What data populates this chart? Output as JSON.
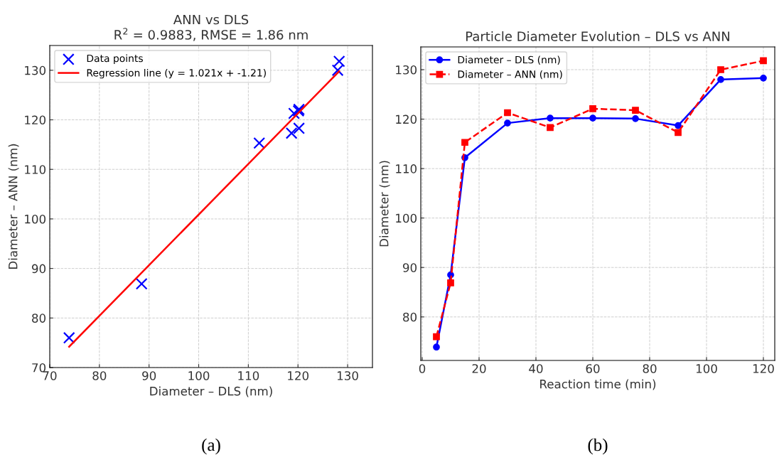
{
  "chart_data": [
    {
      "type": "scatter",
      "title": "ANN vs DLS",
      "subtitle": "R$^{2}$ = 0.9883, RMSE = 1.86 nm",
      "xlabel": "Diameter – DLS (nm)",
      "ylabel": "Diameter – ANN (nm)",
      "series": [
        {
          "name": "Data points",
          "type": "scatter",
          "color": "#0000ff",
          "marker": "cross",
          "x": [
            73.9,
            88.5,
            112.2,
            119.2,
            120.2,
            120.2,
            120.1,
            118.7,
            128.0,
            128.3
          ],
          "values": [
            76.0,
            86.9,
            115.3,
            121.3,
            118.3,
            122.1,
            121.8,
            117.3,
            130.0,
            131.8
          ]
        },
        {
          "name": "Regression line (y = 1.021x + -1.21)",
          "type": "line",
          "color": "#ff0000",
          "marker": "none",
          "line_style": "solid",
          "x": [
            73.9,
            128.3
          ],
          "values": [
            74.2,
            129.8
          ]
        }
      ],
      "xlim": [
        70,
        135
      ],
      "ylim": [
        70,
        135
      ],
      "xticks": [
        70,
        80,
        90,
        100,
        110,
        120,
        130
      ],
      "yticks": [
        70,
        80,
        90,
        100,
        110,
        120,
        130
      ],
      "grid": true,
      "legend": "top left",
      "annotations": [
        "(a)"
      ]
    },
    {
      "type": "line",
      "title": "Particle Diameter Evolution – DLS vs ANN",
      "xlabel": "Reaction time (min)",
      "ylabel": "Diameter (nm)",
      "x": [
        5,
        10,
        15,
        30,
        45,
        60,
        75,
        90,
        105,
        120
      ],
      "series": [
        {
          "name": "Diameter – DLS (nm)",
          "color": "#0000ff",
          "marker": "circle",
          "line_style": "solid",
          "values": [
            73.9,
            88.5,
            112.2,
            119.2,
            120.2,
            120.2,
            120.1,
            118.7,
            128.0,
            128.3
          ]
        },
        {
          "name": "Diameter – ANN (nm)",
          "color": "#ff0000",
          "marker": "square",
          "line_style": "dashed",
          "values": [
            76.0,
            86.9,
            115.3,
            121.3,
            118.3,
            122.1,
            121.8,
            117.3,
            130.0,
            131.8
          ]
        }
      ],
      "xlim": [
        -0.5,
        124
      ],
      "ylim": [
        71.2,
        134.6
      ],
      "xticks": [
        0,
        20,
        40,
        60,
        80,
        100,
        120
      ],
      "yticks": [
        80,
        90,
        100,
        110,
        120,
        130
      ],
      "grid": true,
      "legend": "top left",
      "annotations": [
        "(b)"
      ]
    }
  ]
}
